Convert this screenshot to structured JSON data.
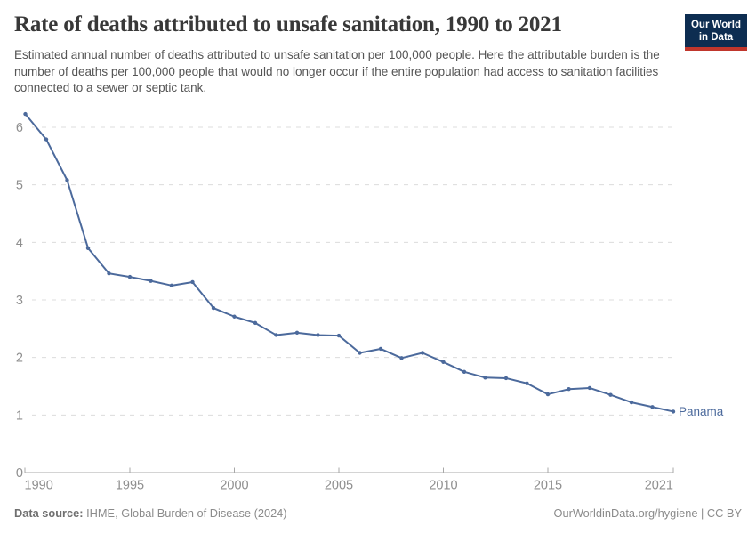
{
  "header": {
    "title": "Rate of deaths attributed to unsafe sanitation, 1990 to 2021",
    "subtitle": "Estimated annual number of deaths attributed to unsafe sanitation per 100,000 people. Here the attributable burden is the number of deaths per 100,000 people that would no longer occur if the entire population had access to sanitation facilities connected to a sewer or septic tank."
  },
  "logo": {
    "line1": "Our World",
    "line2": "in Data",
    "bg_color": "#0d2d51",
    "stripe_color": "#c0362c"
  },
  "chart_data": {
    "type": "line",
    "title": "Rate of deaths attributed to unsafe sanitation, 1990 to 2021",
    "x": [
      1990,
      1991,
      1992,
      1993,
      1994,
      1995,
      1996,
      1997,
      1998,
      1999,
      2000,
      2001,
      2002,
      2003,
      2004,
      2005,
      2006,
      2007,
      2008,
      2009,
      2010,
      2011,
      2012,
      2013,
      2014,
      2015,
      2016,
      2017,
      2018,
      2019,
      2020,
      2021
    ],
    "series": [
      {
        "name": "Panama",
        "color": "#4C6A9C",
        "values": [
          6.23,
          5.79,
          5.08,
          3.9,
          3.46,
          3.4,
          3.33,
          3.25,
          3.31,
          2.86,
          2.71,
          2.6,
          2.39,
          2.43,
          2.39,
          2.38,
          2.08,
          2.15,
          1.99,
          2.08,
          1.92,
          1.75,
          1.65,
          1.64,
          1.55,
          1.36,
          1.45,
          1.47,
          1.35,
          1.22,
          1.14,
          1.06
        ]
      }
    ],
    "x_ticks": [
      1990,
      1995,
      2000,
      2005,
      2010,
      2015,
      2021
    ],
    "y_ticks": [
      0,
      1,
      2,
      3,
      4,
      5,
      6
    ],
    "xlim": [
      1990,
      2021
    ],
    "ylim": [
      0,
      6.35
    ],
    "xlabel": "",
    "ylabel": "",
    "grid": "horizontal-dashed",
    "legend": "end-of-line-label",
    "grid_color": "#dcdcdc",
    "axis_color": "#a8a8a8",
    "tick_label_color": "#8f8f8f"
  },
  "footer": {
    "source_label": "Data source:",
    "source_text": " IHME, Global Burden of Disease (2024)",
    "credit": "OurWorldinData.org/hygiene | CC BY"
  }
}
